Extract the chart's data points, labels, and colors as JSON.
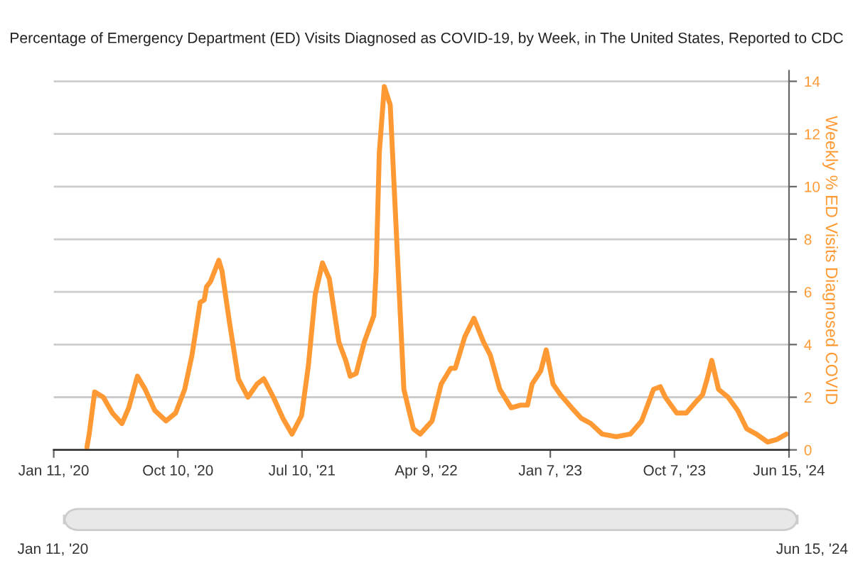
{
  "chart_data": {
    "type": "line",
    "title": "Percentage of Emergency Department (ED) Visits Diagnosed as COVID-19, by Week, in The United States, Reported to CDC",
    "y2label": "Weekly % ED Visits Diagnosed COVID",
    "series": [
      {
        "color": "#ff9933",
        "axis": "y2",
        "x": [
          "2020-03-24",
          "2020-03-29",
          "2020-04-10",
          "2020-04-29",
          "2020-05-19",
          "2020-06-09",
          "2020-06-24",
          "2020-07-13",
          "2020-07-30",
          "2020-08-20",
          "2020-09-14",
          "2020-10-05",
          "2020-10-25",
          "2020-11-10",
          "2020-11-28",
          "2020-12-07",
          "2020-12-12",
          "2020-12-21",
          "2021-01-08",
          "2021-01-15",
          "2021-01-31",
          "2021-02-20",
          "2021-03-13",
          "2021-04-02",
          "2021-04-17",
          "2021-05-08",
          "2021-05-29",
          "2021-06-18",
          "2021-07-09",
          "2021-07-24",
          "2021-08-08",
          "2021-08-24",
          "2021-09-08",
          "2021-09-29",
          "2021-10-14",
          "2021-10-24",
          "2021-11-06",
          "2021-11-24",
          "2021-12-15",
          "2021-12-20",
          "2021-12-27",
          "2022-01-07",
          "2022-01-20",
          "2022-02-04",
          "2022-02-19",
          "2022-03-12",
          "2022-03-27",
          "2022-04-22",
          "2022-05-12",
          "2022-06-02",
          "2022-06-12",
          "2022-07-03",
          "2022-07-23",
          "2022-08-13",
          "2022-08-28",
          "2022-09-18",
          "2022-10-13",
          "2022-11-03",
          "2022-11-18",
          "2022-11-28",
          "2022-12-17",
          "2022-12-29",
          "2023-01-13",
          "2023-01-29",
          "2023-02-23",
          "2023-03-16",
          "2023-04-06",
          "2023-05-01",
          "2023-06-01",
          "2023-07-02",
          "2023-07-27",
          "2023-08-22",
          "2023-09-06",
          "2023-09-17",
          "2023-10-12",
          "2023-11-02",
          "2023-11-22",
          "2023-12-08",
          "2023-12-18",
          "2023-12-28",
          "2024-01-12",
          "2024-02-02",
          "2024-02-23",
          "2024-03-14",
          "2024-04-04",
          "2024-04-29",
          "2024-05-20",
          "2024-06-09"
        ],
        "values": [
          0.1,
          0.6,
          2.2,
          2.0,
          1.4,
          1.0,
          1.6,
          2.8,
          2.3,
          1.5,
          1.1,
          1.4,
          2.3,
          3.6,
          5.6,
          5.7,
          6.2,
          6.4,
          7.2,
          6.8,
          4.9,
          2.7,
          2.0,
          2.5,
          2.7,
          2.0,
          1.2,
          0.6,
          1.3,
          3.2,
          5.9,
          7.1,
          6.5,
          4.1,
          3.4,
          2.8,
          2.9,
          4.1,
          5.1,
          6.8,
          11.3,
          13.8,
          13.1,
          7.7,
          2.3,
          0.8,
          0.6,
          1.1,
          2.5,
          3.1,
          3.1,
          4.3,
          5.0,
          4.1,
          3.6,
          2.3,
          1.6,
          1.7,
          1.7,
          2.5,
          3.0,
          3.8,
          2.5,
          2.1,
          1.6,
          1.2,
          1.0,
          0.6,
          0.5,
          0.6,
          1.1,
          2.3,
          2.4,
          2.0,
          1.4,
          1.4,
          1.8,
          2.1,
          2.7,
          3.4,
          2.3,
          2.0,
          1.5,
          0.8,
          0.6,
          0.3,
          0.4,
          0.6
        ]
      }
    ],
    "xlim": [
      "2020-01-11",
      "2024-06-15"
    ],
    "xticks": [
      {
        "value": "2020-01-11",
        "label": "Jan 11, '20"
      },
      {
        "value": "2020-10-10",
        "label": "Oct 10, '20"
      },
      {
        "value": "2021-07-10",
        "label": "Jul 10, '21"
      },
      {
        "value": "2022-04-09",
        "label": "Apr 9, '22"
      },
      {
        "value": "2023-01-07",
        "label": "Jan 7, '23"
      },
      {
        "value": "2023-10-07",
        "label": "Oct 7, '23"
      },
      {
        "value": "2024-06-15",
        "label": "Jun 15, '24"
      }
    ],
    "y2lim": [
      0,
      14.4
    ],
    "y2ticks": [
      0,
      2,
      4,
      6,
      8,
      10,
      12,
      14
    ],
    "grid": "y",
    "legend": false,
    "annotations": [
      "Jan 11, '20",
      "Jun 15, '24"
    ]
  }
}
